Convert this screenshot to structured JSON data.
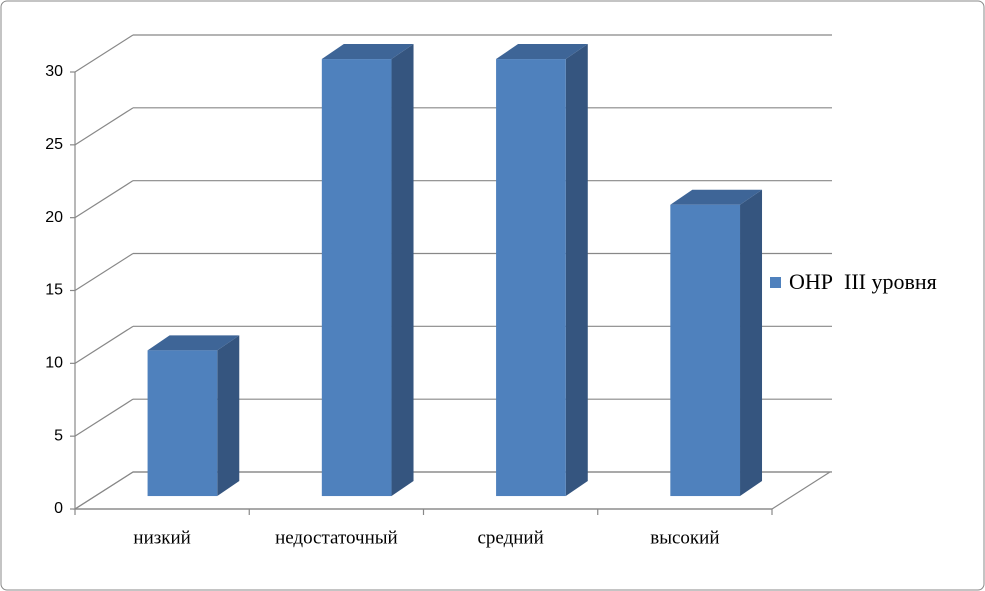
{
  "chart_data": {
    "type": "bar3d",
    "categories": [
      "низкий",
      "недостаточный",
      "средний",
      "высокий"
    ],
    "series": [
      {
        "name": "ОНР  III уровня",
        "color": "#4f81bd",
        "values": [
          10,
          30,
          30,
          20
        ]
      }
    ],
    "ylim": [
      0,
      30
    ],
    "yticks": [
      0,
      5,
      10,
      15,
      20,
      25,
      30
    ],
    "grid": true,
    "legend": "right"
  }
}
